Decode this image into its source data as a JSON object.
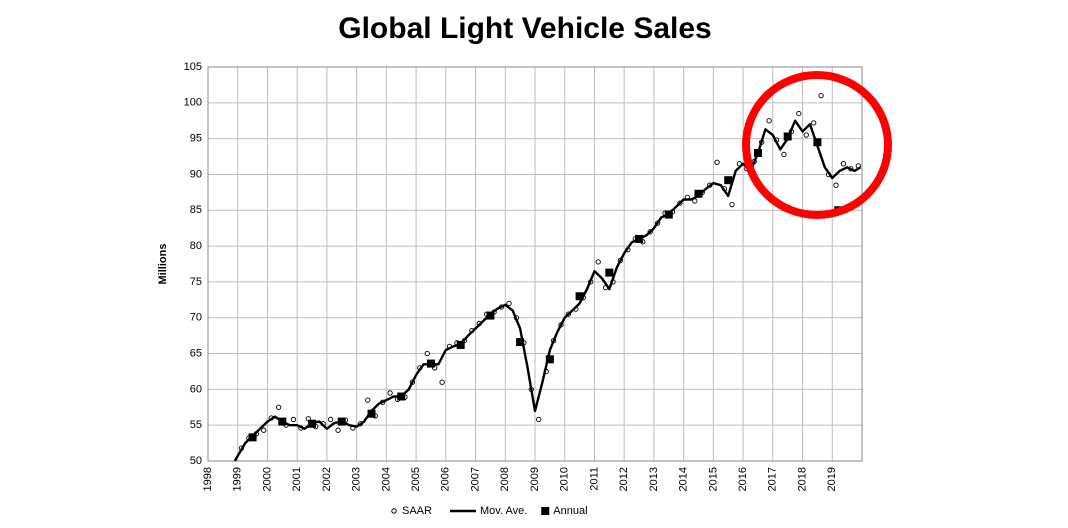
{
  "chart_data": {
    "type": "line",
    "title": "Global Light Vehicle Sales",
    "y_label": "Millions",
    "xlim": [
      1998,
      2020
    ],
    "ylim": [
      50,
      105
    ],
    "xticks": [
      1998,
      1999,
      2000,
      2001,
      2002,
      2003,
      2004,
      2005,
      2006,
      2007,
      2008,
      2009,
      2010,
      2011,
      2012,
      2013,
      2014,
      2015,
      2016,
      2017,
      2018,
      2019
    ],
    "yticks": [
      50,
      55,
      60,
      65,
      70,
      75,
      80,
      85,
      90,
      95,
      100,
      105
    ],
    "grid": true,
    "series": [
      {
        "name": "SAAR",
        "style": "points",
        "color": "#000000",
        "x": [
          1999.125,
          1999.375,
          1999.625,
          1999.875,
          2000.125,
          2000.375,
          2000.625,
          2000.875,
          2001.125,
          2001.375,
          2001.625,
          2001.875,
          2002.125,
          2002.375,
          2002.625,
          2002.875,
          2003.125,
          2003.375,
          2003.625,
          2003.875,
          2004.125,
          2004.375,
          2004.625,
          2004.875,
          2005.125,
          2005.375,
          2005.625,
          2005.875,
          2006.125,
          2006.375,
          2006.625,
          2006.875,
          2007.125,
          2007.375,
          2007.625,
          2007.875,
          2008.125,
          2008.375,
          2008.625,
          2008.875,
          2009.125,
          2009.375,
          2009.625,
          2009.875,
          2010.125,
          2010.375,
          2010.625,
          2010.875,
          2011.125,
          2011.375,
          2011.625,
          2011.875,
          2012.125,
          2012.375,
          2012.625,
          2012.875,
          2013.125,
          2013.375,
          2013.625,
          2013.875,
          2014.125,
          2014.375,
          2014.625,
          2014.875,
          2015.125,
          2015.375,
          2015.625,
          2015.875,
          2016.125,
          2016.375,
          2016.625,
          2016.875,
          2017.125,
          2017.375,
          2017.625,
          2017.875,
          2018.125,
          2018.375,
          2018.625,
          2018.875,
          2019.125,
          2019.375,
          2019.625,
          2019.875
        ],
        "values": [
          51.8,
          53.2,
          53.8,
          54.3,
          56.0,
          57.5,
          55.0,
          55.8,
          54.6,
          55.9,
          54.8,
          55.2,
          55.8,
          54.3,
          55.7,
          54.6,
          55.2,
          58.5,
          56.3,
          58.2,
          59.5,
          58.6,
          58.9,
          61.0,
          63.0,
          65.0,
          63.0,
          61.0,
          66.0,
          66.5,
          66.8,
          68.2,
          69.2,
          70.5,
          70.8,
          71.5,
          72.0,
          70.0,
          66.5,
          60.0,
          55.8,
          62.5,
          66.8,
          69.0,
          70.5,
          71.2,
          72.8,
          75.0,
          77.8,
          74.2,
          75.0,
          78.0,
          79.5,
          81.0,
          80.6,
          82.0,
          83.2,
          84.6,
          84.8,
          86.0,
          86.8,
          86.3,
          87.5,
          88.5,
          91.7,
          88.0,
          85.8,
          91.5,
          90.8,
          91.8,
          94.5,
          97.5,
          94.8,
          92.8,
          96.0,
          98.5,
          95.5,
          97.2,
          101.0,
          90.0,
          88.5,
          91.5,
          90.8,
          91.2
        ]
      },
      {
        "name": "Mov. Ave.",
        "style": "line",
        "color": "#000000",
        "x": [
          1998.9,
          1999.25,
          1999.5,
          1999.75,
          2000.0,
          2000.25,
          2000.5,
          2000.75,
          2001.0,
          2001.25,
          2001.5,
          2001.75,
          2002.0,
          2002.25,
          2002.5,
          2002.75,
          2003.0,
          2003.25,
          2003.5,
          2003.75,
          2004.0,
          2004.25,
          2004.5,
          2004.75,
          2005.0,
          2005.25,
          2005.5,
          2005.75,
          2006.0,
          2006.25,
          2006.5,
          2006.75,
          2007.0,
          2007.25,
          2007.5,
          2007.75,
          2008.0,
          2008.25,
          2008.5,
          2008.75,
          2009.0,
          2009.25,
          2009.5,
          2009.75,
          2010.0,
          2010.25,
          2010.5,
          2010.75,
          2011.0,
          2011.25,
          2011.5,
          2011.75,
          2012.0,
          2012.25,
          2012.5,
          2012.75,
          2013.0,
          2013.25,
          2013.5,
          2013.75,
          2014.0,
          2014.25,
          2014.5,
          2014.75,
          2015.0,
          2015.25,
          2015.5,
          2015.75,
          2016.0,
          2016.25,
          2016.5,
          2016.75,
          2017.0,
          2017.25,
          2017.5,
          2017.75,
          2018.0,
          2018.25,
          2018.5,
          2018.75,
          2019.0,
          2019.25,
          2019.5,
          2019.75,
          2019.95
        ],
        "values": [
          50,
          52.5,
          53.5,
          54.5,
          55.5,
          56.2,
          55.5,
          55.0,
          55.0,
          54.5,
          55.3,
          55.5,
          54.5,
          55.3,
          55.5,
          55.0,
          54.8,
          55.5,
          57.0,
          58.0,
          58.5,
          59.0,
          59.0,
          60.0,
          62.0,
          63.5,
          63.5,
          63.5,
          65.5,
          66.0,
          66.3,
          67.5,
          68.5,
          69.5,
          70.5,
          71.3,
          71.8,
          71.0,
          68.5,
          63.0,
          57.0,
          61.0,
          65.5,
          68.0,
          70.0,
          71.0,
          72.0,
          74.0,
          76.5,
          75.5,
          74.0,
          77.0,
          79.0,
          80.5,
          81.0,
          81.5,
          82.5,
          84.0,
          84.5,
          85.5,
          86.5,
          86.5,
          87.0,
          88.0,
          88.8,
          88.5,
          87.0,
          90.5,
          91.5,
          90.5,
          93.0,
          96.3,
          95.5,
          93.5,
          95.0,
          97.5,
          96.0,
          97.0,
          94.0,
          91.0,
          89.5,
          90.5,
          91.0,
          90.5,
          91.0
        ]
      },
      {
        "name": "Annual",
        "style": "squares",
        "color": "#000000",
        "x": [
          1999.5,
          2000.5,
          2001.5,
          2002.5,
          2003.5,
          2004.5,
          2005.5,
          2006.5,
          2007.5,
          2008.5,
          2009.5,
          2010.5,
          2011.5,
          2012.5,
          2013.5,
          2014.5,
          2015.5,
          2016.5,
          2017.5,
          2018.5,
          2019.2
        ],
        "values": [
          53.3,
          55.5,
          55.2,
          55.5,
          56.6,
          59.0,
          63.6,
          66.2,
          70.3,
          66.6,
          64.2,
          73.0,
          76.3,
          81.0,
          84.4,
          87.3,
          89.2,
          93.0,
          95.3,
          94.5,
          85.0
        ]
      }
    ]
  }
}
